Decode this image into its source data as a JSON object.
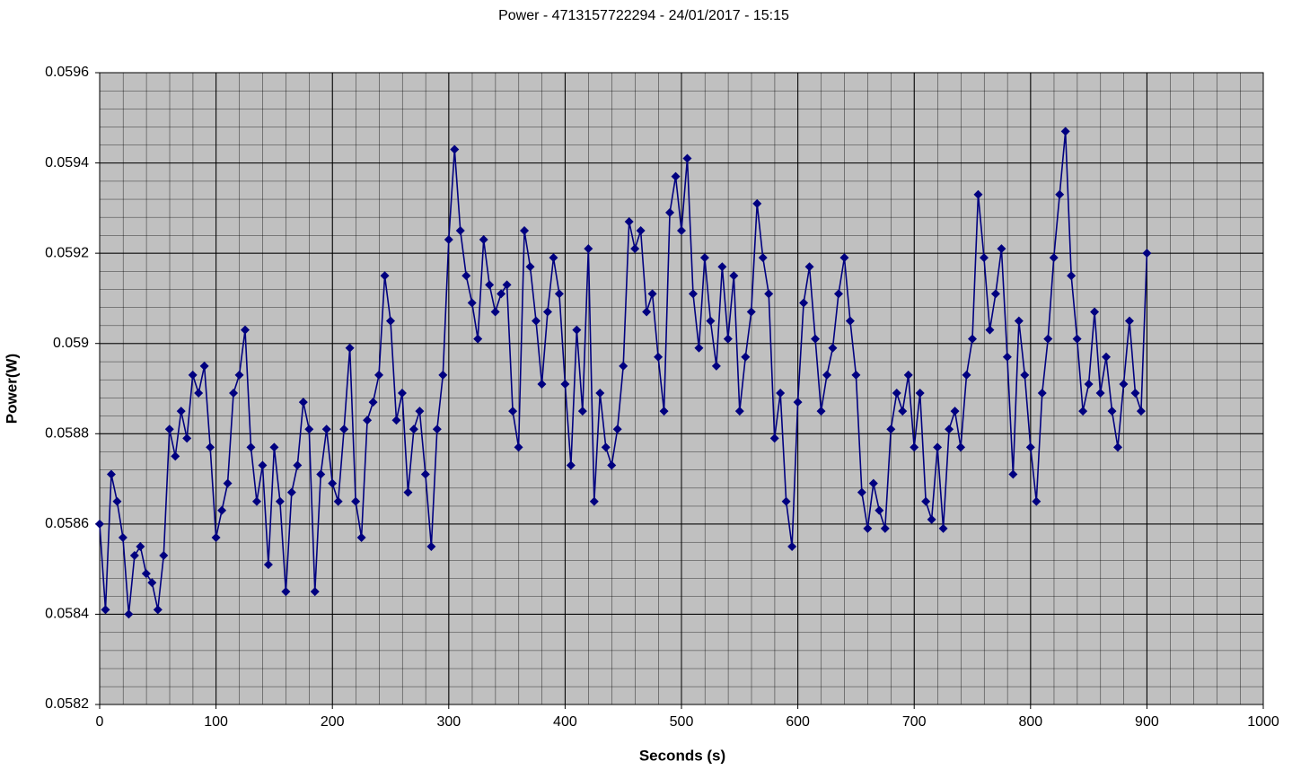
{
  "chart_data": {
    "type": "line",
    "title": "Power - 4713157722294 - 24/01/2017 - 15:15",
    "x_label": "Seconds (s)",
    "y_label": "Power(W)",
    "x": [
      0,
      5,
      10,
      15,
      20,
      25,
      30,
      35,
      40,
      45,
      50,
      55,
      60,
      65,
      70,
      75,
      80,
      85,
      90,
      95,
      100,
      105,
      110,
      115,
      120,
      125,
      130,
      135,
      140,
      145,
      150,
      155,
      160,
      165,
      170,
      175,
      180,
      185,
      190,
      195,
      200,
      205,
      210,
      215,
      220,
      225,
      230,
      235,
      240,
      245,
      250,
      255,
      260,
      265,
      270,
      275,
      280,
      285,
      290,
      295,
      300,
      305,
      310,
      315,
      320,
      325,
      330,
      335,
      340,
      345,
      350,
      355,
      360,
      365,
      370,
      375,
      380,
      385,
      390,
      395,
      400,
      405,
      410,
      415,
      420,
      425,
      430,
      435,
      440,
      445,
      450,
      455,
      460,
      465,
      470,
      475,
      480,
      485,
      490,
      495,
      500,
      505,
      510,
      515,
      520,
      525,
      530,
      535,
      540,
      545,
      550,
      555,
      560,
      565,
      570,
      575,
      580,
      585,
      590,
      595,
      600,
      605,
      610,
      615,
      620,
      625,
      630,
      635,
      640,
      645,
      650,
      655,
      660,
      665,
      670,
      675,
      680,
      685,
      690,
      695,
      700,
      705,
      710,
      715,
      720,
      725,
      730,
      735,
      740,
      745,
      750,
      755,
      760,
      765,
      770,
      775,
      780,
      785,
      790,
      795,
      800,
      805,
      810,
      815,
      820,
      825,
      830,
      835,
      840,
      845,
      850,
      855,
      860,
      865,
      870,
      875,
      880,
      885,
      890,
      895,
      900
    ],
    "series": [
      {
        "color": "#000080",
        "values": [
          0.0586,
          0.05841,
          0.05871,
          0.05865,
          0.05857,
          0.0584,
          0.05853,
          0.05855,
          0.05849,
          0.05847,
          0.05841,
          0.05853,
          0.05881,
          0.05875,
          0.05885,
          0.05879,
          0.05893,
          0.05889,
          0.05895,
          0.05877,
          0.05857,
          0.05863,
          0.05869,
          0.05889,
          0.05893,
          0.05903,
          0.05877,
          0.05865,
          0.05873,
          0.05851,
          0.05877,
          0.05865,
          0.05845,
          0.05867,
          0.05873,
          0.05887,
          0.05881,
          0.05845,
          0.05871,
          0.05881,
          0.05869,
          0.05865,
          0.05881,
          0.05899,
          0.05865,
          0.05857,
          0.05883,
          0.05887,
          0.05893,
          0.05915,
          0.05905,
          0.05883,
          0.05889,
          0.05867,
          0.05881,
          0.05885,
          0.05871,
          0.05855,
          0.05881,
          0.05893,
          0.05923,
          0.05943,
          0.05925,
          0.05915,
          0.05909,
          0.05901,
          0.05923,
          0.05913,
          0.05907,
          0.05911,
          0.05913,
          0.05885,
          0.05877,
          0.05925,
          0.05917,
          0.05905,
          0.05891,
          0.05907,
          0.05919,
          0.05911,
          0.05891,
          0.05873,
          0.05903,
          0.05885,
          0.05921,
          0.05865,
          0.05889,
          0.05877,
          0.05873,
          0.05881,
          0.05895,
          0.05927,
          0.05921,
          0.05925,
          0.05907,
          0.05911,
          0.05897,
          0.05885,
          0.05929,
          0.05937,
          0.05925,
          0.05941,
          0.05911,
          0.05899,
          0.05919,
          0.05905,
          0.05895,
          0.05917,
          0.05901,
          0.05915,
          0.05885,
          0.05897,
          0.05907,
          0.05931,
          0.05919,
          0.05911,
          0.05879,
          0.05889,
          0.05865,
          0.05855,
          0.05887,
          0.05909,
          0.05917,
          0.05901,
          0.05885,
          0.05893,
          0.05899,
          0.05911,
          0.05919,
          0.05905,
          0.05893,
          0.05867,
          0.05859,
          0.05869,
          0.05863,
          0.05859,
          0.05881,
          0.05889,
          0.05885,
          0.05893,
          0.05877,
          0.05889,
          0.05865,
          0.05861,
          0.05877,
          0.05859,
          0.05881,
          0.05885,
          0.05877,
          0.05893,
          0.05901,
          0.05933,
          0.05919,
          0.05903,
          0.05911,
          0.05921,
          0.05897,
          0.05871,
          0.05905,
          0.05893,
          0.05877,
          0.05865,
          0.05889,
          0.05901,
          0.05919,
          0.05933,
          0.05947,
          0.05915,
          0.05901,
          0.05885,
          0.05891,
          0.05907,
          0.05889,
          0.05897,
          0.05885,
          0.05877,
          0.05891,
          0.05905,
          0.05889,
          0.05885,
          0.0592
        ]
      }
    ],
    "xlim": [
      0,
      1000
    ],
    "xticks": [
      0,
      100,
      200,
      300,
      400,
      500,
      600,
      700,
      800,
      900,
      1000
    ],
    "ylim": [
      0.0582,
      0.0596
    ],
    "yticks": [
      0.0582,
      0.0584,
      0.0586,
      0.0588,
      0.059,
      0.0592,
      0.0594,
      0.0596
    ],
    "grid": true
  }
}
